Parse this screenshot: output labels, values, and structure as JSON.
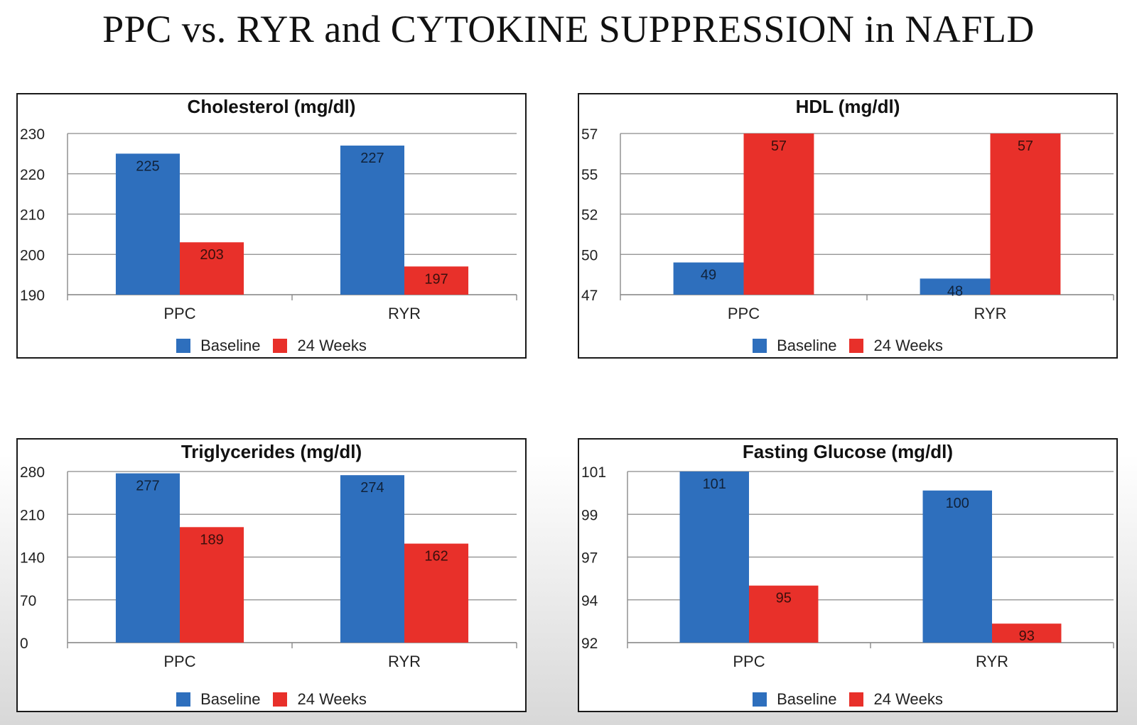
{
  "slide_title": "PPC vs. RYR and CYTOKINE SUPPRESSION in NAFLD",
  "colors": {
    "baseline": "#2e6fbd",
    "weeks24": "#e8302a"
  },
  "chart_data": [
    {
      "type": "bar",
      "title": "Cholesterol (mg/dl)",
      "categories": [
        "PPC",
        "RYR"
      ],
      "series": [
        {
          "name": "Baseline",
          "values": [
            225,
            227
          ],
          "labels": [
            "225",
            "227"
          ]
        },
        {
          "name": "24 Weeks",
          "values": [
            203,
            197
          ],
          "labels": [
            "203",
            "197"
          ]
        }
      ],
      "ylim": [
        190,
        230
      ],
      "yticks": [
        "190",
        "200",
        "210",
        "220",
        "230"
      ],
      "grid": true,
      "legend": "bottom"
    },
    {
      "type": "bar",
      "title": "HDL (mg/dl)",
      "categories": [
        "PPC",
        "RYR"
      ],
      "series": [
        {
          "name": "Baseline",
          "values": [
            49,
            48
          ],
          "labels": [
            "49",
            "48"
          ]
        },
        {
          "name": "24 Weeks",
          "values": [
            57,
            57
          ],
          "labels": [
            "57",
            "57"
          ]
        }
      ],
      "ylim": [
        47,
        57
      ],
      "yticks": [
        "47",
        "50",
        "52",
        "55",
        "57"
      ],
      "grid": true,
      "legend": "bottom"
    },
    {
      "type": "bar",
      "title": "Triglycerides (mg/dl)",
      "categories": [
        "PPC",
        "RYR"
      ],
      "series": [
        {
          "name": "Baseline",
          "values": [
            277,
            274
          ],
          "labels": [
            "277",
            "274"
          ]
        },
        {
          "name": "24 Weeks",
          "values": [
            189,
            162
          ],
          "labels": [
            "189",
            "162"
          ]
        }
      ],
      "ylim": [
        0,
        280
      ],
      "yticks": [
        "0",
        "70",
        "140",
        "210",
        "280"
      ],
      "grid": true,
      "legend": "bottom"
    },
    {
      "type": "bar",
      "title": "Fasting Glucose (mg/dl)",
      "categories": [
        "PPC",
        "RYR"
      ],
      "series": [
        {
          "name": "Baseline",
          "values": [
            101,
            100
          ],
          "labels": [
            "101",
            "100"
          ]
        },
        {
          "name": "24 Weeks",
          "values": [
            95,
            93
          ],
          "labels": [
            "95",
            "93"
          ]
        }
      ],
      "ylim": [
        92,
        101
      ],
      "yticks": [
        "92",
        "94",
        "97",
        "99",
        "101"
      ],
      "grid": true,
      "legend": "bottom"
    }
  ]
}
